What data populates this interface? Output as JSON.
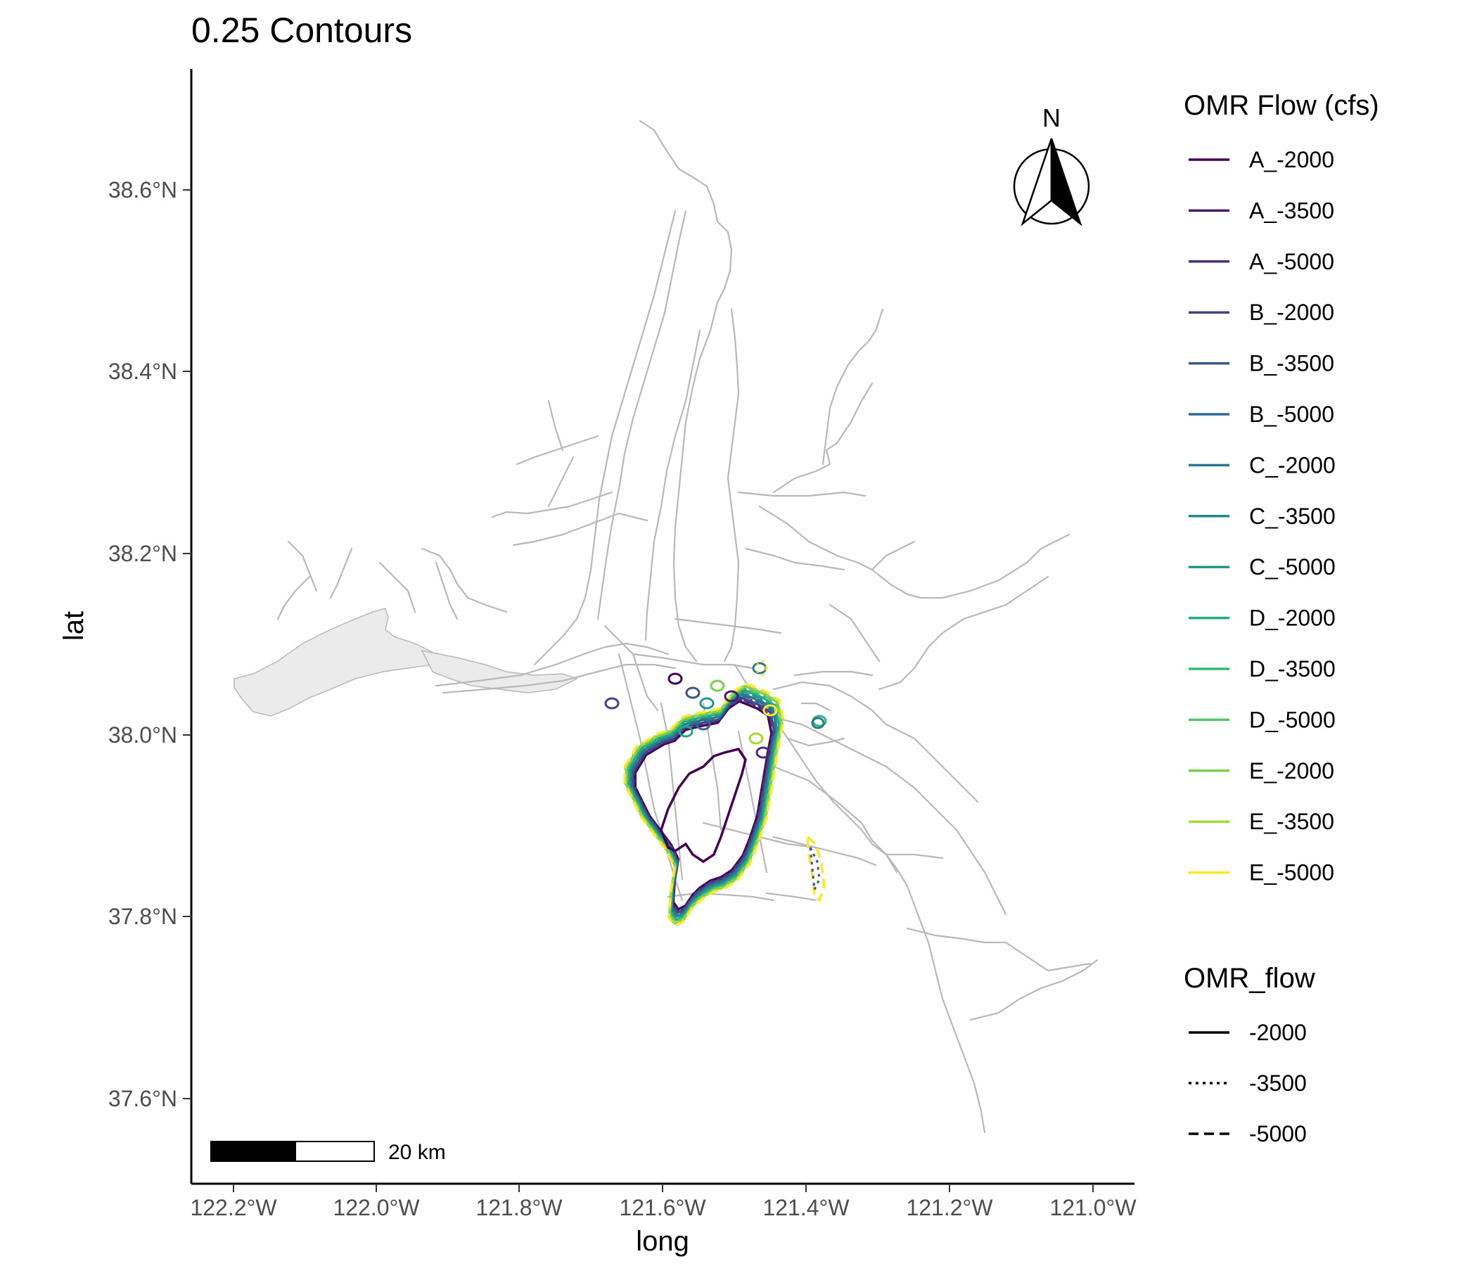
{
  "title": "0.25 Contours",
  "map": {
    "xlabel": "long",
    "ylabel": "lat",
    "x_ticks": [
      "122.2°W",
      "122.0°W",
      "121.8°W",
      "121.6°W",
      "121.4°W",
      "121.2°W",
      "121.0°W"
    ],
    "y_ticks": [
      "38.6°N",
      "38.4°N",
      "38.2°N",
      "38.0°N",
      "37.8°N",
      "37.6°N"
    ],
    "x_range": [
      -122.26,
      -120.94
    ],
    "y_range": [
      37.51,
      38.73
    ],
    "north_arrow_label": "N",
    "scale_bar_label": "20 km",
    "base_layer_color": "#b8b8b8",
    "bay_fill_color": "#ebebeb"
  },
  "legend_color": {
    "title": "OMR Flow (cfs)",
    "items": [
      {
        "label": "A_-2000",
        "color": "#440154"
      },
      {
        "label": "A_-3500",
        "color": "#481A6C"
      },
      {
        "label": "A_-5000",
        "color": "#472F7D"
      },
      {
        "label": "B_-2000",
        "color": "#414487"
      },
      {
        "label": "B_-3500",
        "color": "#39568C"
      },
      {
        "label": "B_-5000",
        "color": "#31688E"
      },
      {
        "label": "C_-2000",
        "color": "#2A788E"
      },
      {
        "label": "C_-3500",
        "color": "#23888E"
      },
      {
        "label": "C_-5000",
        "color": "#1F988B"
      },
      {
        "label": "D_-2000",
        "color": "#22A884"
      },
      {
        "label": "D_-3500",
        "color": "#35B779"
      },
      {
        "label": "D_-5000",
        "color": "#54C568"
      },
      {
        "label": "E_-2000",
        "color": "#7AD151"
      },
      {
        "label": "E_-3500",
        "color": "#A5DB36"
      },
      {
        "label": "E_-5000",
        "color": "#FDE725"
      }
    ]
  },
  "legend_linetype": {
    "title": "OMR_flow",
    "items": [
      {
        "label": "-2000",
        "linetype": "solid"
      },
      {
        "label": "-3500",
        "linetype": "dotted"
      },
      {
        "label": "-5000",
        "linetype": "dashed"
      }
    ]
  }
}
